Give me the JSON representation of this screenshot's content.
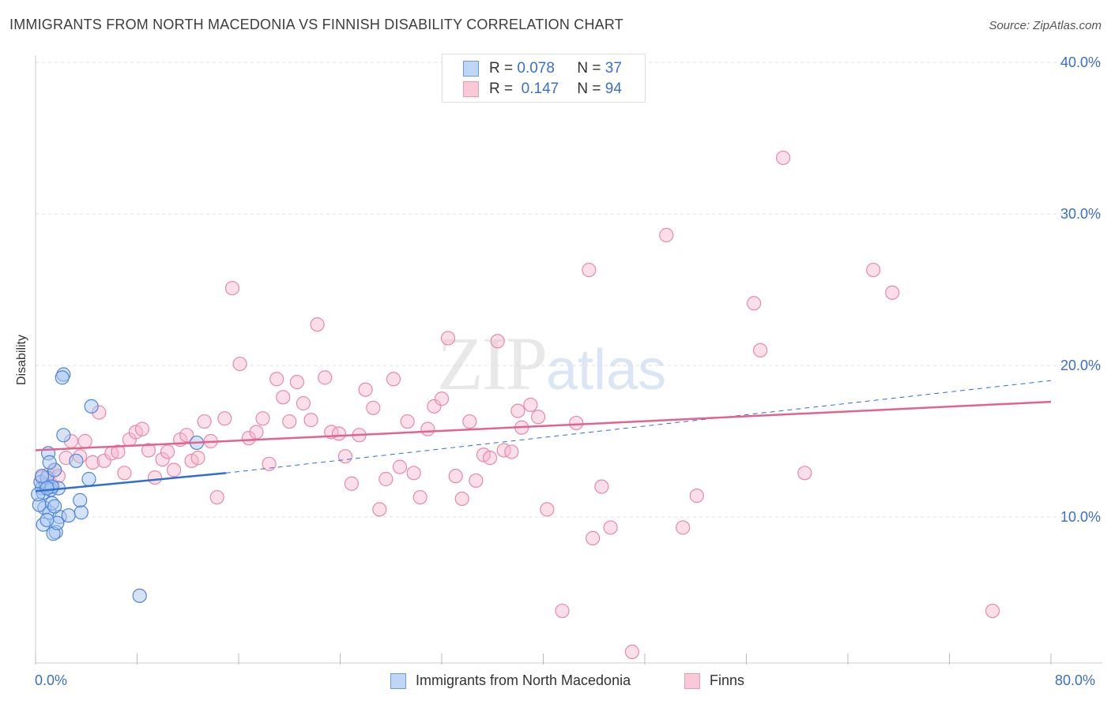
{
  "title": "IMMIGRANTS FROM NORTH MACEDONIA VS FINNISH DISABILITY CORRELATION CHART",
  "source": "Source: ZipAtlas.com",
  "watermark": {
    "zip": "ZIP",
    "atlas": "atlas"
  },
  "legend_top": [
    {
      "r_label": "R =",
      "r_value": "0.078",
      "n_label": "N =",
      "n_value": "37"
    },
    {
      "r_label": "R =",
      "r_value": " 0.147",
      "n_label": "N =",
      "n_value": "94"
    }
  ],
  "colors": {
    "blue_fill": "#a9c8f2",
    "blue_stroke": "#4f86d8",
    "blue_line": "#2f6fd0",
    "pink_fill": "#f5b9cc",
    "pink_stroke": "#e58aa8",
    "pink_line": "#e0648e",
    "tick_text": "#3a6fc6",
    "grid": "#dddddd"
  },
  "chart_data": {
    "type": "scatter",
    "title": "IMMIGRANTS FROM NORTH MACEDONIA VS FINNISH DISABILITY CORRELATION CHART",
    "xlabel": "",
    "ylabel": "Disability",
    "xlim": [
      0,
      80
    ],
    "ylim": [
      0,
      42
    ],
    "x_tick_labels": [
      "0.0%",
      "80.0%"
    ],
    "y_ticks": [
      10,
      20,
      30,
      40
    ],
    "y_tick_labels": [
      "10.0%",
      "20.0%",
      "30.0%",
      "40.0%"
    ],
    "legend": [
      "Immigrants from North Macedonia",
      "Finns"
    ],
    "series": [
      {
        "name": "Immigrants from North Macedonia",
        "R": 0.078,
        "N": 37,
        "trend": {
          "x0": 0,
          "y0": 11.7,
          "x1": 15,
          "y1": 12.9,
          "dashed_to_x": 80,
          "dashed_to_y": 19.0
        },
        "points": [
          [
            0.5,
            11.9
          ],
          [
            0.8,
            12.1
          ],
          [
            0.6,
            11.6
          ],
          [
            1.0,
            12.0
          ],
          [
            0.4,
            12.3
          ],
          [
            1.2,
            11.8
          ],
          [
            0.9,
            12.6
          ],
          [
            1.5,
            13.1
          ],
          [
            0.7,
            10.6
          ],
          [
            1.1,
            10.3
          ],
          [
            0.3,
            10.8
          ],
          [
            1.3,
            10.9
          ],
          [
            1.8,
            11.9
          ],
          [
            0.6,
            9.5
          ],
          [
            1.6,
            9.0
          ],
          [
            1.4,
            8.9
          ],
          [
            1.9,
            10.0
          ],
          [
            2.6,
            10.1
          ],
          [
            1.7,
            9.6
          ],
          [
            3.6,
            10.3
          ],
          [
            3.5,
            11.1
          ],
          [
            2.2,
            15.4
          ],
          [
            1.0,
            14.2
          ],
          [
            1.1,
            13.6
          ],
          [
            3.2,
            13.7
          ],
          [
            4.2,
            12.5
          ],
          [
            2.2,
            19.4
          ],
          [
            2.1,
            19.2
          ],
          [
            4.4,
            17.3
          ],
          [
            12.7,
            14.9
          ],
          [
            8.2,
            4.8
          ],
          [
            0.9,
            9.8
          ],
          [
            1.5,
            10.7
          ],
          [
            0.2,
            11.5
          ],
          [
            1.3,
            12.0
          ],
          [
            0.9,
            11.9
          ],
          [
            0.5,
            12.7
          ]
        ]
      },
      {
        "name": "Finns",
        "R": 0.147,
        "N": 94,
        "trend": {
          "x0": 0,
          "y0": 14.4,
          "x1": 80,
          "y1": 17.6
        },
        "points": [
          [
            0.5,
            12.6
          ],
          [
            1.0,
            12.8
          ],
          [
            1.2,
            12.2
          ],
          [
            1.5,
            13.1
          ],
          [
            2.4,
            13.9
          ],
          [
            2.8,
            15.0
          ],
          [
            3.5,
            14.0
          ],
          [
            3.9,
            15.0
          ],
          [
            4.5,
            13.6
          ],
          [
            5.0,
            16.9
          ],
          [
            5.4,
            13.7
          ],
          [
            6.0,
            14.2
          ],
          [
            6.5,
            14.3
          ],
          [
            7.0,
            12.9
          ],
          [
            7.4,
            15.1
          ],
          [
            7.9,
            15.6
          ],
          [
            8.4,
            15.8
          ],
          [
            8.9,
            14.4
          ],
          [
            9.4,
            12.6
          ],
          [
            10.0,
            13.8
          ],
          [
            10.4,
            14.3
          ],
          [
            10.9,
            13.1
          ],
          [
            11.4,
            15.1
          ],
          [
            11.9,
            15.4
          ],
          [
            12.3,
            13.7
          ],
          [
            12.8,
            13.9
          ],
          [
            13.3,
            16.3
          ],
          [
            13.8,
            15.0
          ],
          [
            14.3,
            11.3
          ],
          [
            14.9,
            16.5
          ],
          [
            15.5,
            25.1
          ],
          [
            16.1,
            20.1
          ],
          [
            16.8,
            15.2
          ],
          [
            17.4,
            15.6
          ],
          [
            17.9,
            16.5
          ],
          [
            18.4,
            13.5
          ],
          [
            19.0,
            19.1
          ],
          [
            19.5,
            17.9
          ],
          [
            20.0,
            16.3
          ],
          [
            20.6,
            18.9
          ],
          [
            21.1,
            17.5
          ],
          [
            21.7,
            16.4
          ],
          [
            22.2,
            22.7
          ],
          [
            22.8,
            19.2
          ],
          [
            23.3,
            15.6
          ],
          [
            23.9,
            15.5
          ],
          [
            24.4,
            14.0
          ],
          [
            24.9,
            12.2
          ],
          [
            25.5,
            15.4
          ],
          [
            26.0,
            18.4
          ],
          [
            26.6,
            17.2
          ],
          [
            27.1,
            10.5
          ],
          [
            27.6,
            12.5
          ],
          [
            28.2,
            19.1
          ],
          [
            28.7,
            13.3
          ],
          [
            29.3,
            16.3
          ],
          [
            29.8,
            12.9
          ],
          [
            30.3,
            11.3
          ],
          [
            30.9,
            15.8
          ],
          [
            31.4,
            17.3
          ],
          [
            32.0,
            17.8
          ],
          [
            32.5,
            21.8
          ],
          [
            33.1,
            12.7
          ],
          [
            33.6,
            11.2
          ],
          [
            34.2,
            16.3
          ],
          [
            34.7,
            12.4
          ],
          [
            35.3,
            14.1
          ],
          [
            35.8,
            13.9
          ],
          [
            36.4,
            21.6
          ],
          [
            36.9,
            14.4
          ],
          [
            37.5,
            14.3
          ],
          [
            38.0,
            17.0
          ],
          [
            38.3,
            15.9
          ],
          [
            39.0,
            17.4
          ],
          [
            39.6,
            16.6
          ],
          [
            40.3,
            10.5
          ],
          [
            41.5,
            3.8
          ],
          [
            42.6,
            16.2
          ],
          [
            43.6,
            26.3
          ],
          [
            43.9,
            8.6
          ],
          [
            44.6,
            12.0
          ],
          [
            45.3,
            9.3
          ],
          [
            49.7,
            28.6
          ],
          [
            51.0,
            9.3
          ],
          [
            52.1,
            11.4
          ],
          [
            56.6,
            24.1
          ],
          [
            57.1,
            21.0
          ],
          [
            58.9,
            33.7
          ],
          [
            60.6,
            12.9
          ],
          [
            66.0,
            26.3
          ],
          [
            67.5,
            24.8
          ],
          [
            75.4,
            3.8
          ],
          [
            47.0,
            1.1
          ],
          [
            1.8,
            12.7
          ]
        ]
      }
    ]
  }
}
